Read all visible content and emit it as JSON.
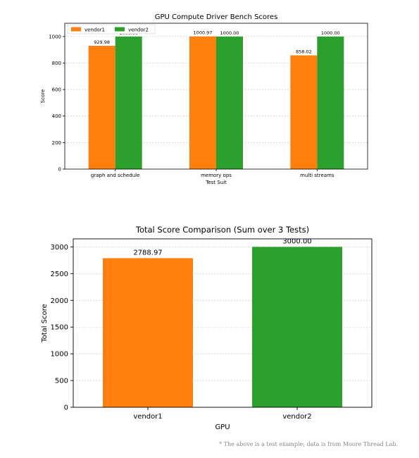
{
  "colors": {
    "vendor1": "#ff7f0e",
    "vendor2": "#2ca02c",
    "grid": "#c8c8c8",
    "axis": "#000000"
  },
  "chart_data": [
    {
      "type": "bar",
      "title": "GPU Compute Driver Bench Scores",
      "xlabel": "Test Suit",
      "ylabel": "Score",
      "categories": [
        "graph and schedule",
        "memory ops",
        "multi streams"
      ],
      "series": [
        {
          "name": "vendor1",
          "values": [
            929.98,
            1000.97,
            858.02
          ],
          "labels": [
            "929.98",
            "1000.97",
            "858.02"
          ]
        },
        {
          "name": "vendor2",
          "values": [
            1000.0,
            1000.0,
            1000.0
          ],
          "labels": [
            "1000.00",
            "1000.00",
            "1000.00"
          ]
        }
      ],
      "ylim": [
        0,
        1100
      ],
      "yticks": [
        "0",
        "200",
        "400",
        "600",
        "800",
        "1000"
      ],
      "grid": "horizontal-dashed",
      "legend": "top-left"
    },
    {
      "type": "bar",
      "title": "Total Score Comparison (Sum over 3 Tests)",
      "xlabel": "GPU",
      "ylabel": "Total Score",
      "categories": [
        "vendor1",
        "vendor2"
      ],
      "values": [
        2788.97,
        3000.0
      ],
      "labels": [
        "2788.97",
        "3000.00"
      ],
      "ylim": [
        0,
        3150
      ],
      "yticks": [
        "0",
        "500",
        "1000",
        "1500",
        "2000",
        "2500",
        "3000"
      ],
      "grid": "horizontal-dashed"
    }
  ],
  "footnote": "* The above is a test example; data is from Moore Thread Lab."
}
